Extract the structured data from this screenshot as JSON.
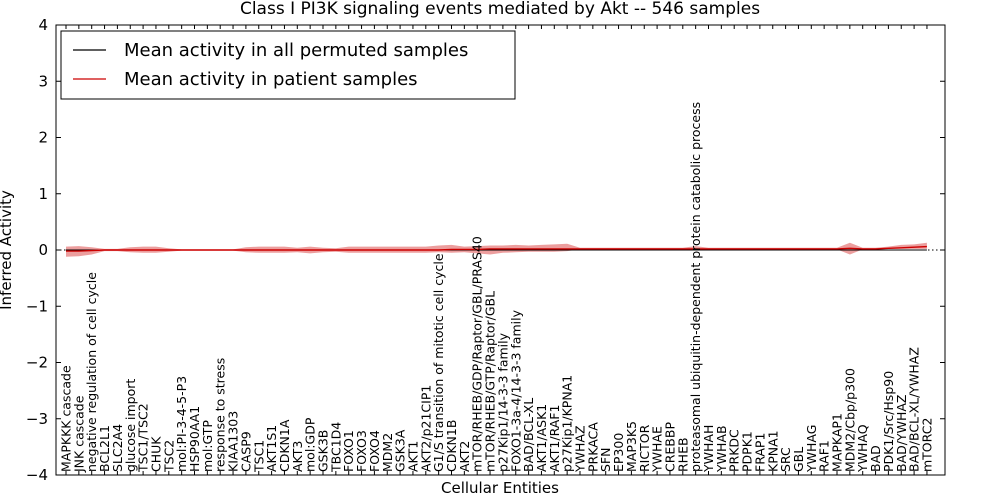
{
  "chart_data": {
    "type": "line",
    "title": "Class I PI3K signaling events mediated by Akt -- 546 samples",
    "xlabel": "Cellular Entities",
    "ylabel": "Inferred Activity",
    "ylim": [
      -4,
      4
    ],
    "yticks": [
      4,
      3,
      2,
      1,
      0,
      -1,
      -2,
      -3,
      -4
    ],
    "ytick_labels": [
      "4",
      "3",
      "2",
      "1",
      "0",
      "−1",
      "−2",
      "−3",
      "−4"
    ],
    "legend_position": "top-left",
    "categories": [
      "MAPKKK cascade",
      "JNK cascade",
      "negative regulation of cell cycle",
      "BCL2L1",
      "SLC2A4",
      "glucose import",
      "TSC1/TSC2",
      "CHUK",
      "TSC2",
      "mol:PI-3-4-5-P3",
      "HSP90AA1",
      "mol:GTP",
      "response to stress",
      "KIAA1303",
      "CASP9",
      "TSC1",
      "AKT1S1",
      "CDKN1A",
      "AKT3",
      "mol:GDP",
      "GSK3B",
      "TBC1D4",
      "FOXO1",
      "FOXO3",
      "FOXO4",
      "MDM2",
      "GSK3A",
      "AKT1",
      "AKT2/p21CIP1",
      "G1/S transition of mitotic cell cycle",
      "CDKN1B",
      "AKT2",
      "mTOR/RHEB/GDP/Raptor/GBL/PRAS40",
      "mTOR/RHEB/GTP/Raptor/GBL",
      "p27Kip1/14-3-3 family",
      "FOXO1-3a-4/14-3-3 family",
      "BAD/BCL-XL",
      "AKT1/ASK1",
      "AKT1/RAF1",
      "p27Kip1/KPNA1",
      "YWHAZ",
      "PRKACA",
      "SFN",
      "EP300",
      "MAP3K5",
      "RICTOR",
      "YWHAE",
      "CREBBP",
      "RHEB",
      "proteasomal ubiquitin-dependent protein catabolic process",
      "YWHAH",
      "YWHAB",
      "PRKDC",
      "PDPK1",
      "FRAP1",
      "KPNA1",
      "SRC",
      "GBL",
      "YWHAG",
      "RAF1",
      "MAPKAP1",
      "MDM2/Cbp/p300",
      "YWHAQ",
      "BAD",
      "PDK1/Src/Hsp90",
      "BAD/YWHAZ",
      "BAD/BCL-XL/YWHAZ",
      "mTORC2"
    ],
    "series": [
      {
        "name": "Mean activity in all permuted samples",
        "color": "#000000",
        "values": [
          0,
          0,
          0,
          0,
          0,
          0,
          0,
          0,
          0,
          0,
          0,
          0,
          0,
          0,
          0,
          0,
          0,
          0,
          0,
          0,
          0,
          0,
          0,
          0,
          0,
          0,
          0,
          0,
          0,
          0,
          0,
          0,
          0,
          0,
          0,
          0,
          0,
          0,
          0,
          0,
          0,
          0,
          0,
          0,
          0,
          0,
          0,
          0,
          0,
          0,
          0,
          0,
          0,
          0,
          0,
          0,
          0,
          0,
          0,
          0,
          0,
          0,
          0,
          0,
          0,
          0,
          0,
          0
        ]
      },
      {
        "name": "Mean activity in patient samples",
        "color": "#cc0000",
        "values": [
          -0.02,
          -0.02,
          -0.01,
          0,
          0,
          0,
          0,
          0,
          0,
          0,
          0,
          0,
          0,
          0,
          0,
          0,
          0,
          0,
          0,
          0,
          0,
          0,
          0,
          0,
          0,
          0,
          0,
          0,
          0,
          0,
          0.01,
          0.01,
          0.01,
          0.02,
          0.02,
          0.02,
          0.02,
          0.02,
          0.02,
          0.02,
          0.02,
          0.02,
          0.02,
          0.02,
          0.02,
          0.02,
          0.02,
          0.02,
          0.02,
          0.02,
          0.02,
          0.02,
          0.02,
          0.02,
          0.02,
          0.02,
          0.02,
          0.02,
          0.02,
          0.02,
          0.02,
          0.03,
          0.02,
          0.02,
          0.03,
          0.04,
          0.05,
          0.06
        ],
        "band_upper": [
          0.06,
          0.07,
          0.05,
          0.02,
          0.02,
          0.05,
          0.06,
          0.06,
          0.03,
          0.01,
          0.01,
          0.01,
          0.01,
          0.01,
          0.05,
          0.06,
          0.06,
          0.06,
          0.04,
          0.06,
          0.04,
          0.03,
          0.06,
          0.06,
          0.06,
          0.06,
          0.06,
          0.06,
          0.06,
          0.08,
          0.09,
          0.06,
          0.07,
          0.08,
          0.08,
          0.09,
          0.08,
          0.09,
          0.1,
          0.11,
          0.04,
          0.04,
          0.04,
          0.04,
          0.04,
          0.04,
          0.04,
          0.04,
          0.04,
          0.07,
          0.04,
          0.04,
          0.04,
          0.04,
          0.04,
          0.04,
          0.04,
          0.04,
          0.04,
          0.04,
          0.04,
          0.13,
          0.04,
          0.04,
          0.06,
          0.09,
          0.1,
          0.13
        ],
        "band_lower": [
          -0.12,
          -0.11,
          -0.08,
          -0.02,
          -0.02,
          -0.04,
          -0.05,
          -0.05,
          -0.03,
          -0.01,
          -0.01,
          -0.01,
          -0.01,
          -0.01,
          -0.04,
          -0.05,
          -0.05,
          -0.05,
          -0.04,
          -0.06,
          -0.04,
          -0.03,
          -0.05,
          -0.05,
          -0.05,
          -0.05,
          -0.05,
          -0.05,
          -0.05,
          -0.04,
          -0.05,
          -0.04,
          -0.06,
          -0.08,
          -0.05,
          -0.04,
          -0.03,
          -0.03,
          -0.03,
          -0.02,
          0.01,
          0.01,
          0.01,
          0.01,
          0.01,
          0.01,
          0.01,
          0.01,
          0.01,
          0,
          0.01,
          0.01,
          0.01,
          0.01,
          0.01,
          0.01,
          0.01,
          0.01,
          0.01,
          0.01,
          0.01,
          -0.08,
          0.01,
          0.01,
          0.02,
          0.02,
          0.02,
          0.02
        ]
      }
    ]
  }
}
